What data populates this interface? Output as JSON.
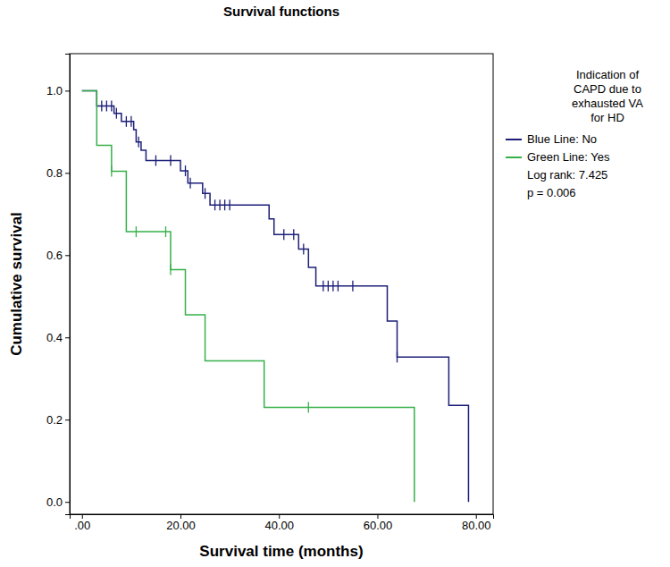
{
  "chart_data": {
    "type": "step",
    "title": "Survival functions",
    "x_label": "Survival time (months)",
    "y_label": "Cumulative survival",
    "legend_title": [
      "Indication of",
      "CAPD due to",
      "exhausted VA",
      "for HD"
    ],
    "legend": "right",
    "marker": "tick",
    "annotations": [
      "Log rank: 7.425",
      "p = 0.006"
    ],
    "xlim": [
      -2.5,
      83.5
    ],
    "ylim": [
      -0.03,
      1.09
    ],
    "xticks": [
      {
        "value": 0,
        "label": ".00"
      },
      {
        "value": 20,
        "label": "20.00"
      },
      {
        "value": 40,
        "label": "40.00"
      },
      {
        "value": 60,
        "label": "60.00"
      },
      {
        "value": 80,
        "label": "80.00"
      }
    ],
    "yticks": [
      {
        "value": 0,
        "label": "0.0"
      },
      {
        "value": 0.2,
        "label": "0.2"
      },
      {
        "value": 0.4,
        "label": "0.4"
      },
      {
        "value": 0.6,
        "label": "0.6"
      },
      {
        "value": 0.8,
        "label": "0.8"
      },
      {
        "value": 1,
        "label": "1.0"
      }
    ],
    "grid": false,
    "series": [
      {
        "name": "Blue Line: No",
        "color": "#1c1f78",
        "x": [
          0,
          3,
          6.5,
          8,
          10.5,
          11,
          12,
          13,
          20,
          21.5,
          24.5,
          26,
          38,
          39,
          44,
          46,
          47.5,
          62,
          64,
          74.5,
          78.5
        ],
        "values": [
          1,
          0.963,
          0.945,
          0.925,
          0.905,
          0.875,
          0.855,
          0.83,
          0.805,
          0.775,
          0.75,
          0.722,
          0.688,
          0.65,
          0.615,
          0.57,
          0.525,
          0.44,
          0.352,
          0.235,
          0
        ],
        "censor_x": [
          4,
          5,
          6,
          7,
          9,
          10,
          11.5,
          15,
          18,
          21,
          22,
          25,
          27,
          28,
          29,
          30,
          41,
          43,
          45,
          49,
          50,
          51,
          52,
          55,
          64
        ],
        "censor_values": [
          0.963,
          0.963,
          0.963,
          0.945,
          0.925,
          0.925,
          0.875,
          0.83,
          0.83,
          0.805,
          0.775,
          0.75,
          0.722,
          0.722,
          0.722,
          0.722,
          0.65,
          0.65,
          0.615,
          0.525,
          0.525,
          0.525,
          0.525,
          0.525,
          0.352
        ]
      },
      {
        "name": "Green Line: Yes",
        "color": "#36b04a",
        "x": [
          0,
          3,
          6,
          9,
          18,
          21,
          25,
          37,
          67.5
        ],
        "values": [
          1,
          0.867,
          0.804,
          0.657,
          0.565,
          0.455,
          0.343,
          0.23,
          0
        ],
        "censor_x": [
          6,
          11,
          17,
          18,
          46
        ],
        "censor_values": [
          0.804,
          0.657,
          0.657,
          0.565,
          0.23
        ]
      }
    ]
  }
}
